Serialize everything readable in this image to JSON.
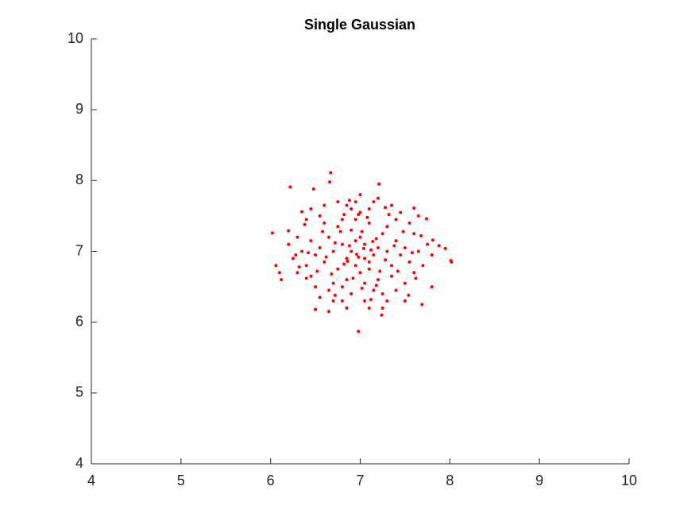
{
  "chart_data": {
    "type": "scatter",
    "title": "Single Gaussian",
    "color": "#ff0000",
    "xlim": [
      4,
      10
    ],
    "xticks": [
      4,
      5,
      6,
      7,
      8,
      9,
      10
    ],
    "ylim": [
      4,
      10
    ],
    "yticks": [
      4,
      5,
      6,
      7,
      8,
      9,
      10
    ],
    "x": [
      6.67,
      6.22,
      6.98,
      8.01,
      8.02,
      6.02,
      7.69,
      6.48,
      7.21,
      6.66,
      6.06,
      6.12,
      6.1,
      7.95,
      7.88,
      7.8,
      6.5,
      7.24,
      7.81,
      7.6,
      6.35,
      6.2,
      6.28,
      6.4,
      7.74,
      7.54,
      6.8,
      7.1,
      6.9,
      7.05,
      6.85,
      7.15,
      7.0,
      6.95,
      7.2,
      6.8,
      7.1,
      6.7,
      7.3,
      7.0,
      6.9,
      7.25,
      6.75,
      7.35,
      6.65,
      7.1,
      6.85,
      7.4,
      6.6,
      7.05,
      6.95,
      7.45,
      6.55,
      7.2,
      6.8,
      7.3,
      6.7,
      7.5,
      6.5,
      7.0,
      7.15,
      6.75,
      7.35,
      6.45,
      7.55,
      6.9,
      7.1,
      6.6,
      7.4,
      6.65,
      7.6,
      6.4,
      7.25,
      6.85,
      7.5,
      6.55,
      7.65,
      6.35,
      7.05,
      6.95,
      7.45,
      6.5,
      7.7,
      6.3,
      7.3,
      6.75,
      7.55,
      6.45,
      7.2,
      6.7,
      7.75,
      6.25,
      7.4,
      6.6,
      7.6,
      6.4,
      7.0,
      6.85,
      7.65,
      6.3,
      7.15,
      6.55,
      7.8,
      6.2,
      7.35,
      6.65,
      7.5,
      6.45,
      7.25,
      6.9,
      6.8,
      7.1,
      6.95,
      7.05,
      6.88,
      7.12,
      6.98,
      7.02,
      6.82,
      7.18,
      7.28,
      6.72,
      6.92,
      7.08,
      7.38,
      6.62,
      7.22,
      6.78,
      7.42,
      6.58,
      7.32,
      6.68,
      7.48,
      6.52,
      7.02,
      6.98,
      7.58,
      6.42,
      7.12,
      6.88,
      7.62,
      6.38,
      7.28,
      6.72,
      7.68,
      6.32,
      7.18,
      6.82,
      7.04,
      6.96,
      7.14,
      6.86
    ],
    "values": [
      8.11,
      7.91,
      5.87,
      6.87,
      6.85,
      7.26,
      6.25,
      7.88,
      7.95,
      7.98,
      6.8,
      6.6,
      6.7,
      7.04,
      7.08,
      6.5,
      6.18,
      6.1,
      7.16,
      7.61,
      7.56,
      7.29,
      6.95,
      6.62,
      7.46,
      6.38,
      6.3,
      6.2,
      7.0,
      7.1,
      6.9,
      6.95,
      7.2,
      6.8,
      7.05,
      7.1,
      6.85,
      7.0,
      7.0,
      6.7,
      7.3,
      7.25,
      6.75,
      6.8,
      7.2,
      7.4,
      6.6,
      7.15,
      6.85,
      6.55,
      7.45,
      6.95,
      7.05,
      6.6,
      7.45,
      7.35,
      6.55,
      7.05,
      6.95,
      7.55,
      6.45,
      7.35,
      6.65,
      7.15,
      6.85,
      6.4,
      7.6,
      7.4,
      7.45,
      6.45,
      7.25,
      6.8,
      6.4,
      7.65,
      6.55,
      7.5,
      7.0,
      7.0,
      6.3,
      7.7,
      7.55,
      6.5,
      6.8,
      7.2,
      6.3,
      7.7,
      7.4,
      6.65,
      7.75,
      6.3,
      7.1,
      6.9,
      6.45,
      7.65,
      6.7,
      7.45,
      7.8,
      6.2,
      7.5,
      6.7,
      7.7,
      6.35,
      6.95,
      7.1,
      7.65,
      6.15,
      6.3,
      7.6,
      6.2,
      7.6,
      6.5,
      6.75,
      7.15,
      6.9,
      7.08,
      7.02,
      6.92,
      7.28,
      6.82,
      7.18,
      6.88,
      7.12,
      6.62,
      7.48,
      7.08,
      6.92,
      6.72,
      7.28,
      6.72,
      7.28,
      7.52,
      6.68,
      7.28,
      6.72,
      6.48,
      7.52,
      6.98,
      6.98,
      6.32,
      7.72,
      6.62,
      7.38,
      7.62,
      6.38,
      7.22,
      6.78,
      6.52,
      7.52,
      7.04,
      6.96,
      7.14,
      6.86
    ]
  }
}
